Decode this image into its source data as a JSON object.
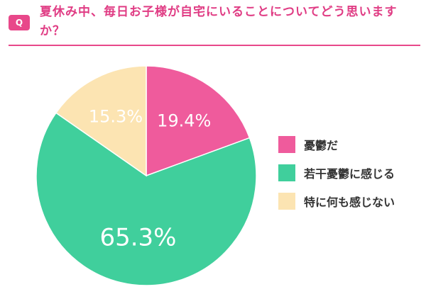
{
  "header": {
    "badge": "Q",
    "title": "夏休み中、毎日お子様が自宅にいることについてどう思いますか？",
    "accent_color": "#e8488a",
    "title_color": "#e03c84"
  },
  "chart_data": {
    "type": "pie",
    "title": "夏休み中、毎日お子様が自宅にいることについてどう思いますか？",
    "start_angle_deg": 0,
    "direction": "clockwise",
    "legend_position": "right",
    "slices": [
      {
        "label": "憂鬱だ",
        "value": 19.4,
        "display": "19.4%",
        "color": "#ef5b9c"
      },
      {
        "label": "若干憂鬱に感じる",
        "value": 65.3,
        "display": "65.3%",
        "color": "#40cf9c"
      },
      {
        "label": "特に何も感じない",
        "value": 15.3,
        "display": "15.3%",
        "color": "#fce4b2"
      }
    ]
  }
}
